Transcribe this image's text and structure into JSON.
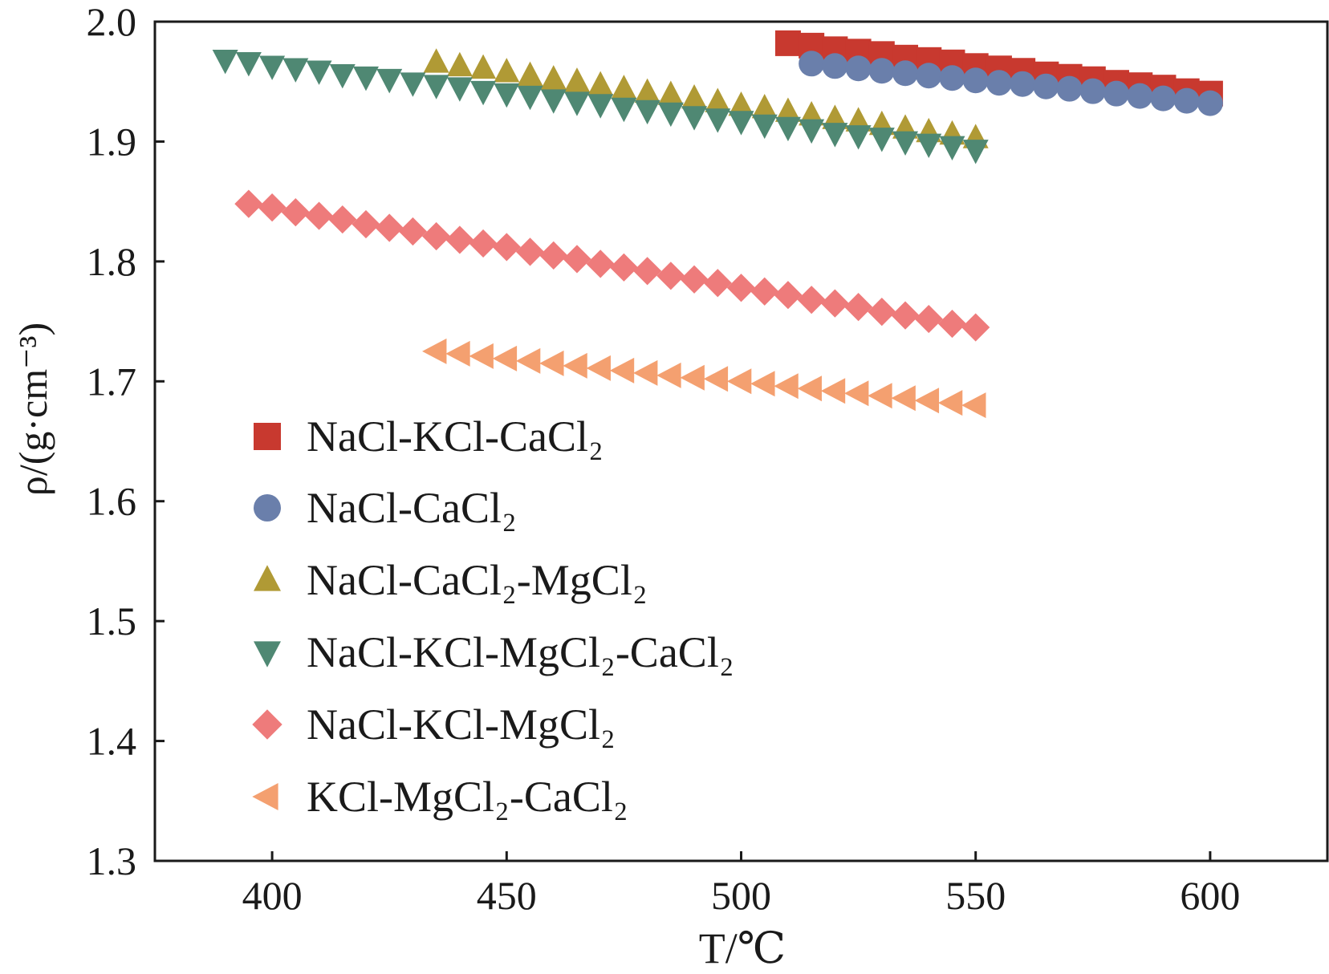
{
  "chart_data": {
    "type": "scatter",
    "title": "",
    "xlabel": "T/℃",
    "ylabel": "ρ/(g·cm⁻³)",
    "xlim": [
      375,
      625
    ],
    "ylim": [
      1.3,
      2.0
    ],
    "xticks": [
      400,
      450,
      500,
      550,
      600
    ],
    "yticks": [
      1.3,
      1.4,
      1.5,
      1.6,
      1.7,
      1.8,
      1.9,
      2.0
    ],
    "ytick_labels": [
      "1.3",
      "1.4",
      "1.5",
      "1.6",
      "1.7",
      "1.8",
      "1.9",
      "2.0"
    ],
    "grid": false,
    "legend_position": "left",
    "series": [
      {
        "name": "NaCl-KCl-CaCl₂",
        "marker": "square",
        "color": "#c8392f",
        "x": [
          510,
          515,
          520,
          525,
          530,
          535,
          540,
          545,
          550,
          555,
          560,
          565,
          570,
          575,
          580,
          585,
          590,
          595,
          600
        ],
        "y": [
          1.982,
          1.98,
          1.977,
          1.975,
          1.973,
          1.97,
          1.968,
          1.966,
          1.963,
          1.961,
          1.959,
          1.956,
          1.954,
          1.952,
          1.949,
          1.947,
          1.945,
          1.942,
          1.94
        ]
      },
      {
        "name": "NaCl-CaCl₂",
        "marker": "circle",
        "color": "#6a7fab",
        "x": [
          515,
          520,
          525,
          530,
          535,
          540,
          545,
          550,
          555,
          560,
          565,
          570,
          575,
          580,
          585,
          590,
          595,
          600
        ],
        "y": [
          1.965,
          1.963,
          1.961,
          1.959,
          1.957,
          1.955,
          1.953,
          1.951,
          1.949,
          1.948,
          1.946,
          1.944,
          1.942,
          1.94,
          1.938,
          1.936,
          1.934,
          1.932
        ]
      },
      {
        "name": "NaCl-CaCl₂-MgCl₂",
        "marker": "triangle-up",
        "color": "#b09a35",
        "x": [
          435,
          440,
          445,
          450,
          455,
          460,
          465,
          470,
          475,
          480,
          485,
          490,
          495,
          500,
          505,
          510,
          515,
          520,
          525,
          530,
          535,
          540,
          545,
          550
        ],
        "y": [
          1.966,
          1.963,
          1.961,
          1.958,
          1.955,
          1.952,
          1.95,
          1.947,
          1.944,
          1.941,
          1.939,
          1.936,
          1.933,
          1.93,
          1.928,
          1.925,
          1.922,
          1.919,
          1.917,
          1.914,
          1.911,
          1.908,
          1.906,
          1.903
        ]
      },
      {
        "name": "NaCl-KCl-MgCl₂-CaCl₂",
        "marker": "triangle-down",
        "color": "#4f8873",
        "x": [
          390,
          395,
          400,
          405,
          410,
          415,
          420,
          425,
          430,
          435,
          440,
          445,
          450,
          455,
          460,
          465,
          470,
          475,
          480,
          485,
          490,
          495,
          500,
          505,
          510,
          515,
          520,
          525,
          530,
          535,
          540,
          545,
          550
        ],
        "y": [
          1.968,
          1.966,
          1.963,
          1.961,
          1.959,
          1.956,
          1.954,
          1.952,
          1.949,
          1.947,
          1.945,
          1.942,
          1.94,
          1.938,
          1.935,
          1.933,
          1.931,
          1.928,
          1.926,
          1.924,
          1.921,
          1.919,
          1.917,
          1.914,
          1.912,
          1.91,
          1.907,
          1.905,
          1.903,
          1.9,
          1.898,
          1.896,
          1.893
        ]
      },
      {
        "name": "NaCl-KCl-MgCl₂",
        "marker": "diamond",
        "color": "#ee7b7b",
        "x": [
          395,
          400,
          405,
          410,
          415,
          420,
          425,
          430,
          435,
          440,
          445,
          450,
          455,
          460,
          465,
          470,
          475,
          480,
          485,
          490,
          495,
          500,
          505,
          510,
          515,
          520,
          525,
          530,
          535,
          540,
          545,
          550
        ],
        "y": [
          1.848,
          1.845,
          1.841,
          1.838,
          1.835,
          1.831,
          1.828,
          1.825,
          1.821,
          1.818,
          1.815,
          1.812,
          1.808,
          1.805,
          1.802,
          1.798,
          1.795,
          1.792,
          1.788,
          1.785,
          1.782,
          1.778,
          1.775,
          1.772,
          1.768,
          1.765,
          1.762,
          1.758,
          1.755,
          1.752,
          1.748,
          1.745
        ]
      },
      {
        "name": "KCl-MgCl₂-CaCl₂",
        "marker": "triangle-left",
        "color": "#f4a070",
        "x": [
          435,
          440,
          445,
          450,
          455,
          460,
          465,
          470,
          475,
          480,
          485,
          490,
          495,
          500,
          505,
          510,
          515,
          520,
          525,
          530,
          535,
          540,
          545,
          550
        ],
        "y": [
          1.725,
          1.723,
          1.721,
          1.719,
          1.717,
          1.715,
          1.713,
          1.711,
          1.709,
          1.707,
          1.705,
          1.703,
          1.702,
          1.7,
          1.698,
          1.696,
          1.694,
          1.692,
          1.69,
          1.688,
          1.686,
          1.684,
          1.682,
          1.68
        ]
      }
    ]
  }
}
